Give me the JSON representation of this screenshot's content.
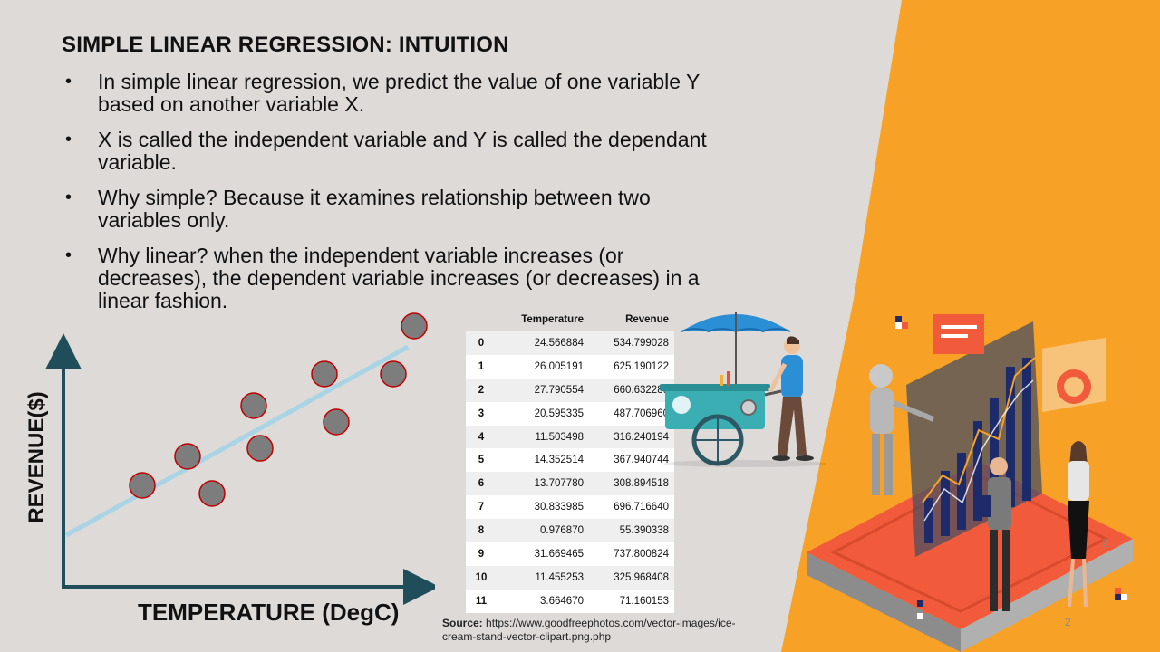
{
  "slide": {
    "title": "SIMPLE LINEAR REGRESSION: INTUITION",
    "bullets": [
      "In simple linear regression, we predict the value of one variable Y based on another variable X.",
      "X is called the independent variable and Y is called the dependant variable.",
      "Why simple? Because it examines relationship between two variables only.",
      "Why linear? when the independent variable increases (or decreases), the dependent variable increases (or decreases) in a linear fashion."
    ],
    "page_number": "2"
  },
  "diagram": {
    "y_label": "REVENUE($)",
    "x_label": "TEMPERATURE (DegC)"
  },
  "table": {
    "columns": [
      "Temperature",
      "Revenue"
    ],
    "rows": [
      {
        "index": "0",
        "temperature": "24.566884",
        "revenue": "534.799028"
      },
      {
        "index": "1",
        "temperature": "26.005191",
        "revenue": "625.190122"
      },
      {
        "index": "2",
        "temperature": "27.790554",
        "revenue": "660.632289"
      },
      {
        "index": "3",
        "temperature": "20.595335",
        "revenue": "487.706960"
      },
      {
        "index": "4",
        "temperature": "11.503498",
        "revenue": "316.240194"
      },
      {
        "index": "5",
        "temperature": "14.352514",
        "revenue": "367.940744"
      },
      {
        "index": "6",
        "temperature": "13.707780",
        "revenue": "308.894518"
      },
      {
        "index": "7",
        "temperature": "30.833985",
        "revenue": "696.716640"
      },
      {
        "index": "8",
        "temperature": "0.976870",
        "revenue": "55.390338"
      },
      {
        "index": "9",
        "temperature": "31.669465",
        "revenue": "737.800824"
      },
      {
        "index": "10",
        "temperature": "11.455253",
        "revenue": "325.968408"
      },
      {
        "index": "11",
        "temperature": "3.664670",
        "revenue": "71.160153"
      }
    ]
  },
  "source": {
    "label": "Source:",
    "text": "https://www.goodfreephotos.com/vector-images/ice-cream-stand-vector-clipart.png.php"
  },
  "colors": {
    "background": "#dedad8",
    "accent_orange": "#f7a226",
    "axis": "#1f4e5a",
    "regression_line": "#a8d4e6",
    "point_fill": "#7d7d7d",
    "point_stroke": "#c00000"
  },
  "icons": [
    "ice-cream-cart-illustration",
    "robot-analytics-illustration"
  ]
}
